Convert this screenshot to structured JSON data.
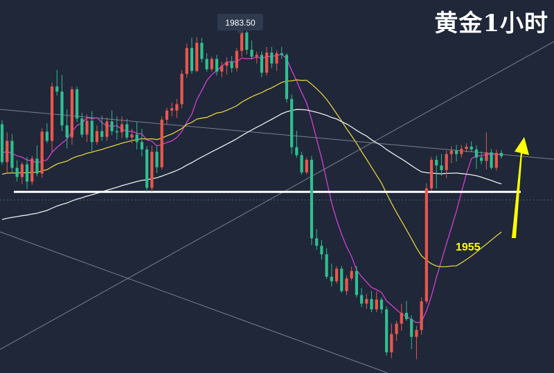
{
  "title": "黄金1小时",
  "chart_data": {
    "type": "candlestick",
    "timeframe": "1H",
    "high_label": "1983.50",
    "level_label": "1955",
    "level_value": 1955,
    "ylim": [
      1924,
      1988
    ],
    "colors": {
      "background": "#1f2739",
      "up": "#e8584d",
      "down": "#2fbf8f",
      "ma_fast": "#d63fd6",
      "ma_mid": "#e6d23c",
      "ma_slow": "#eeeeee",
      "support": "#ffffff",
      "trendline": "#9aa0aa",
      "arrow": "#ffff00",
      "label_bg": "#2f3a4f"
    },
    "candles": [
      [
        1966.8,
        1967.5,
        1959.7,
        1960.2
      ],
      [
        1960.2,
        1965.4,
        1958.2,
        1963.9
      ],
      [
        1963.9,
        1965.1,
        1958.2,
        1959.2
      ],
      [
        1959.2,
        1960.5,
        1956.8,
        1957.6
      ],
      [
        1957.6,
        1960.2,
        1956.4,
        1959.8
      ],
      [
        1959.8,
        1961.1,
        1955.5,
        1956.8
      ],
      [
        1956.8,
        1961.3,
        1956.2,
        1960.8
      ],
      [
        1960.8,
        1963.1,
        1957.7,
        1958.2
      ],
      [
        1958.2,
        1966.1,
        1957.5,
        1965.5
      ],
      [
        1965.5,
        1967.0,
        1963.5,
        1963.9
      ],
      [
        1963.9,
        1974.1,
        1962.0,
        1973.4
      ],
      [
        1973.4,
        1976.3,
        1971.8,
        1972.5
      ],
      [
        1972.5,
        1975.4,
        1965.6,
        1966.6
      ],
      [
        1966.6,
        1969.4,
        1962.6,
        1964.5
      ],
      [
        1964.5,
        1973.4,
        1963.2,
        1972.9
      ],
      [
        1972.9,
        1973.4,
        1967.2,
        1967.8
      ],
      [
        1967.8,
        1968.8,
        1964.5,
        1965.0
      ],
      [
        1965.0,
        1968.5,
        1963.7,
        1967.4
      ],
      [
        1967.4,
        1969.1,
        1961.9,
        1963.7
      ],
      [
        1963.7,
        1966.6,
        1963.2,
        1965.6
      ],
      [
        1965.6,
        1968.3,
        1963.9,
        1964.6
      ],
      [
        1964.6,
        1968.0,
        1963.9,
        1967.3
      ],
      [
        1967.3,
        1969.2,
        1964.9,
        1965.6
      ],
      [
        1965.6,
        1968.2,
        1964.1,
        1965.4
      ],
      [
        1965.4,
        1968.2,
        1964.4,
        1966.8
      ],
      [
        1966.8,
        1967.8,
        1964.1,
        1964.5
      ],
      [
        1964.5,
        1966.0,
        1963.5,
        1965.0
      ],
      [
        1965.0,
        1967.2,
        1962.4,
        1963.7
      ],
      [
        1963.7,
        1966.0,
        1961.2,
        1962.4
      ],
      [
        1962.4,
        1963.0,
        1955.0,
        1955.7
      ],
      [
        1955.7,
        1963.1,
        1955.0,
        1962.0
      ],
      [
        1962.0,
        1963.1,
        1958.3,
        1959.3
      ],
      [
        1959.3,
        1968.2,
        1958.9,
        1967.6
      ],
      [
        1967.6,
        1969.7,
        1966.7,
        1969.2
      ],
      [
        1969.2,
        1970.6,
        1968.2,
        1969.6
      ],
      [
        1969.2,
        1971.2,
        1967.9,
        1970.3
      ],
      [
        1970.3,
        1976.3,
        1969.6,
        1975.6
      ],
      [
        1975.6,
        1980.9,
        1974.9,
        1980.1
      ],
      [
        1980.1,
        1981.9,
        1975.6,
        1976.1
      ],
      [
        1976.1,
        1982.0,
        1975.9,
        1981.0
      ],
      [
        1981.0,
        1981.9,
        1977.6,
        1978.2
      ],
      [
        1978.2,
        1979.2,
        1976.0,
        1976.4
      ],
      [
        1976.4,
        1978.6,
        1976.0,
        1978.2
      ],
      [
        1978.2,
        1978.9,
        1975.3,
        1976.0
      ],
      [
        1976.0,
        1977.7,
        1975.0,
        1977.0
      ],
      [
        1977.0,
        1978.5,
        1975.5,
        1977.7
      ],
      [
        1977.7,
        1978.7,
        1975.8,
        1976.6
      ],
      [
        1976.6,
        1980.1,
        1976.0,
        1979.6
      ],
      [
        1979.6,
        1983.5,
        1978.6,
        1982.8
      ],
      [
        1982.8,
        1983.1,
        1979.0,
        1979.8
      ],
      [
        1979.8,
        1981.4,
        1978.1,
        1978.6
      ],
      [
        1978.6,
        1979.5,
        1977.4,
        1978.9
      ],
      [
        1978.9,
        1979.5,
        1975.0,
        1975.8
      ],
      [
        1975.8,
        1980.3,
        1975.3,
        1979.3
      ],
      [
        1979.3,
        1980.3,
        1976.6,
        1977.4
      ],
      [
        1977.4,
        1979.7,
        1976.1,
        1979.2
      ],
      [
        1979.2,
        1980.3,
        1978.2,
        1978.9
      ],
      [
        1978.9,
        1979.2,
        1970.6,
        1971.2
      ],
      [
        1971.2,
        1972.0,
        1961.6,
        1962.8
      ],
      [
        1962.8,
        1965.7,
        1961.0,
        1961.4
      ],
      [
        1961.4,
        1962.0,
        1958.0,
        1958.4
      ],
      [
        1958.4,
        1961.0,
        1958.1,
        1960.6
      ],
      [
        1960.6,
        1961.3,
        1945.7,
        1946.9
      ],
      [
        1946.9,
        1948.5,
        1944.9,
        1945.6
      ],
      [
        1945.6,
        1946.6,
        1943.2,
        1944.1
      ],
      [
        1944.1,
        1945.2,
        1939.8,
        1940.2
      ],
      [
        1940.2,
        1942.5,
        1938.5,
        1939.4
      ],
      [
        1939.4,
        1942.0,
        1939.0,
        1941.6
      ],
      [
        1941.6,
        1942.1,
        1937.4,
        1937.7
      ],
      [
        1937.7,
        1940.4,
        1937.0,
        1939.9
      ],
      [
        1939.9,
        1942.0,
        1939.5,
        1941.2
      ],
      [
        1941.2,
        1942.1,
        1936.6,
        1937.0
      ],
      [
        1937.0,
        1938.2,
        1934.9,
        1935.5
      ],
      [
        1935.5,
        1937.2,
        1934.6,
        1936.3
      ],
      [
        1936.3,
        1937.7,
        1934.0,
        1934.5
      ],
      [
        1934.5,
        1937.6,
        1934.0,
        1936.2
      ],
      [
        1936.2,
        1936.6,
        1933.8,
        1934.5
      ],
      [
        1934.5,
        1935.0,
        1926.4,
        1927.0
      ],
      [
        1927.0,
        1932.0,
        1926.0,
        1930.2
      ],
      [
        1930.2,
        1932.5,
        1929.0,
        1932.0
      ],
      [
        1932.0,
        1935.5,
        1930.8,
        1933.9
      ],
      [
        1933.9,
        1936.0,
        1932.5,
        1932.8
      ],
      [
        1932.8,
        1933.5,
        1927.6,
        1929.7
      ],
      [
        1929.7,
        1931.6,
        1925.8,
        1930.9
      ],
      [
        1930.9,
        1936.6,
        1930.1,
        1935.9
      ],
      [
        1935.9,
        1956.5,
        1935.5,
        1955.6
      ],
      [
        1955.6,
        1961.1,
        1955.2,
        1960.6
      ],
      [
        1960.6,
        1961.3,
        1955.6,
        1959.6
      ],
      [
        1959.6,
        1961.6,
        1957.8,
        1958.8
      ],
      [
        1958.8,
        1962.2,
        1957.4,
        1961.6
      ],
      [
        1961.6,
        1963.0,
        1960.0,
        1962.2
      ],
      [
        1962.2,
        1963.2,
        1960.3,
        1961.6
      ],
      [
        1961.6,
        1963.2,
        1961.0,
        1962.5
      ],
      [
        1962.5,
        1963.5,
        1961.9,
        1962.9
      ],
      [
        1962.9,
        1963.8,
        1962.0,
        1962.4
      ],
      [
        1962.4,
        1963.1,
        1959.0,
        1961.0
      ],
      [
        1961.0,
        1962.1,
        1959.8,
        1960.4
      ],
      [
        1960.4,
        1965.4,
        1958.9,
        1961.9
      ],
      [
        1961.9,
        1962.5,
        1958.9,
        1959.2
      ],
      [
        1959.2,
        1962.4,
        1958.7,
        1961.8
      ],
      [
        1961.8,
        1962.3,
        1960.8,
        1961.2
      ]
    ]
  }
}
